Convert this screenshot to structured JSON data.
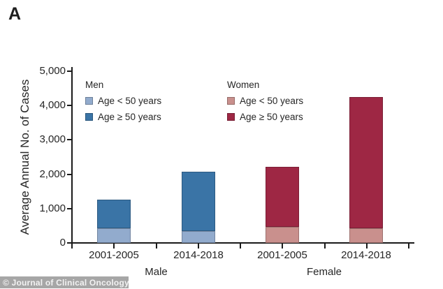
{
  "figure": {
    "panel_label": "A",
    "footer": "© Journal of Clinical Oncology"
  },
  "legend": {
    "columns": [
      {
        "title": "Men",
        "items": [
          {
            "label": "Age < 50 years",
            "color": "#92ABCD"
          },
          {
            "label": "Age ≥ 50 years",
            "color": "#3A74A6"
          }
        ]
      },
      {
        "title": "Women",
        "items": [
          {
            "label": "Age < 50 years",
            "color": "#C9908D"
          },
          {
            "label": "Age ≥ 50 years",
            "color": "#9E2744"
          }
        ]
      }
    ]
  },
  "chart_data": {
    "type": "bar",
    "stacked": true,
    "title": "",
    "xlabel": "",
    "ylabel": "Average Annual No. of Cases",
    "ylim": [
      0,
      5000
    ],
    "ytick_interval": 1000,
    "ytick_labels": [
      "0",
      "1,000",
      "2,000",
      "3,000",
      "4,000",
      "5,000"
    ],
    "categories": [
      "2001-2005",
      "2014-2018",
      "2001-2005",
      "2014-2018"
    ],
    "groups": [
      {
        "label": "Male",
        "category_indexes": [
          0,
          1
        ]
      },
      {
        "label": "Female",
        "category_indexes": [
          2,
          3
        ]
      }
    ],
    "series": [
      {
        "name": "Age < 50 years",
        "values": [
          430,
          350,
          470,
          430
        ],
        "colors": [
          "#92ABCD",
          "#92ABCD",
          "#C9908D",
          "#C9908D"
        ]
      },
      {
        "name": "Age ≥ 50 years",
        "values": [
          830,
          1730,
          1750,
          3820
        ],
        "colors": [
          "#3A74A6",
          "#3A74A6",
          "#9E2744",
          "#9E2744"
        ]
      }
    ],
    "bar_totals": [
      1260,
      2080,
      2220,
      4250
    ],
    "legend_position": "upper-left-inside",
    "grid": false
  }
}
